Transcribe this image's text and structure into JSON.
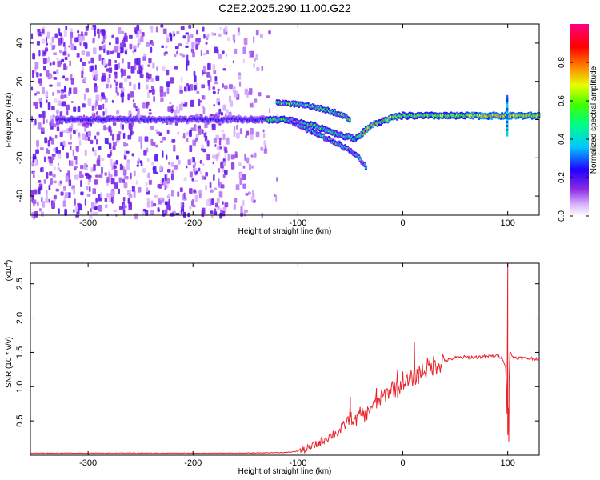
{
  "figure_title": "C2E2.2025.290.11.00.G22",
  "chart_data": [
    {
      "type": "heatmap",
      "title": "C2E2.2025.290.11.00.G22",
      "xlabel": "Height of straight line (km)",
      "ylabel": "Frequency (Hz)",
      "xlim": [
        -355,
        130
      ],
      "ylim": [
        -50,
        50
      ],
      "x_ticks": [
        -300,
        -200,
        -100,
        0,
        100
      ],
      "y_ticks": [
        -40,
        -20,
        0,
        20,
        40
      ],
      "colorbar": {
        "label": "Normalized spectral amplitude",
        "range": [
          0,
          1
        ],
        "ticks": [
          0.0,
          0.2,
          0.4,
          0.6,
          0.8
        ],
        "tick_labels": [
          "0.0",
          "0.2",
          "0.4",
          "0.6",
          "0.8"
        ],
        "colormap": "rainbow (white-violet-blue-cyan-green-yellow-red-magenta)"
      },
      "features": {
        "noise_region_x": [
          -355,
          -130
        ],
        "main_ridge": [
          {
            "x": -330,
            "f": 0
          },
          {
            "x": -250,
            "f": 0
          },
          {
            "x": -150,
            "f": 0
          },
          {
            "x": -110,
            "f": 0
          },
          {
            "x": -80,
            "f": -4
          },
          {
            "x": -60,
            "f": -8
          },
          {
            "x": -45,
            "f": -10
          },
          {
            "x": -30,
            "f": -3
          },
          {
            "x": -10,
            "f": 1
          },
          {
            "x": 0,
            "f": 2
          },
          {
            "x": 40,
            "f": 2
          },
          {
            "x": 100,
            "f": 2
          },
          {
            "x": 130,
            "f": 2
          }
        ],
        "upper_branch": [
          {
            "x": -120,
            "f": 9
          },
          {
            "x": -100,
            "f": 8
          },
          {
            "x": -80,
            "f": 6
          },
          {
            "x": -60,
            "f": 3
          },
          {
            "x": -50,
            "f": 0
          }
        ],
        "lower_branch": [
          {
            "x": -110,
            "f": 0
          },
          {
            "x": -80,
            "f": -8
          },
          {
            "x": -60,
            "f": -13
          },
          {
            "x": -45,
            "f": -18
          },
          {
            "x": -35,
            "f": -25
          }
        ]
      }
    },
    {
      "type": "line",
      "xlabel": "Height of straight line (km)",
      "ylabel": "SNR (10 * v/v)",
      "y_multiplier_label": "(x10",
      "y_multiplier_exp": "4",
      "xlim": [
        -355,
        130
      ],
      "ylim": [
        0,
        2.8
      ],
      "x_ticks": [
        -300,
        -200,
        -100,
        0,
        100
      ],
      "y_ticks": [
        0.5,
        1.0,
        1.5,
        2.0,
        2.5
      ],
      "y_tick_labels": [
        "0.5",
        "1.0",
        "1.5",
        "2.0",
        "2.5"
      ],
      "series": [
        {
          "color": "#e8242b",
          "x": [
            -355,
            -300,
            -250,
            -200,
            -150,
            -110,
            -100,
            -90,
            -80,
            -70,
            -60,
            -55,
            -50,
            -45,
            -40,
            -35,
            -30,
            -25,
            -20,
            -15,
            -10,
            -5,
            0,
            5,
            10,
            15,
            20,
            25,
            30,
            35,
            40,
            50,
            60,
            70,
            80,
            90,
            95,
            98,
            100,
            102,
            105,
            110,
            120,
            130
          ],
          "values": [
            0.03,
            0.03,
            0.03,
            0.03,
            0.03,
            0.04,
            0.06,
            0.1,
            0.18,
            0.28,
            0.35,
            0.45,
            0.55,
            0.5,
            0.62,
            0.58,
            0.72,
            0.75,
            0.85,
            0.9,
            1.0,
            0.95,
            1.1,
            1.05,
            1.15,
            1.18,
            1.25,
            1.28,
            1.32,
            1.35,
            1.38,
            1.42,
            1.43,
            1.43,
            1.44,
            1.45,
            1.42,
            1.3,
            0.3,
            1.5,
            1.43,
            1.42,
            1.41,
            1.41
          ],
          "spikes": [
            {
              "x": -50,
              "y": 0.85
            },
            {
              "x": -25,
              "y": 0.98
            },
            {
              "x": -5,
              "y": 1.25
            },
            {
              "x": 11,
              "y": 1.65
            },
            {
              "x": 100,
              "y": 2.8
            },
            {
              "x": 101,
              "y": 0.2
            }
          ]
        }
      ]
    }
  ]
}
